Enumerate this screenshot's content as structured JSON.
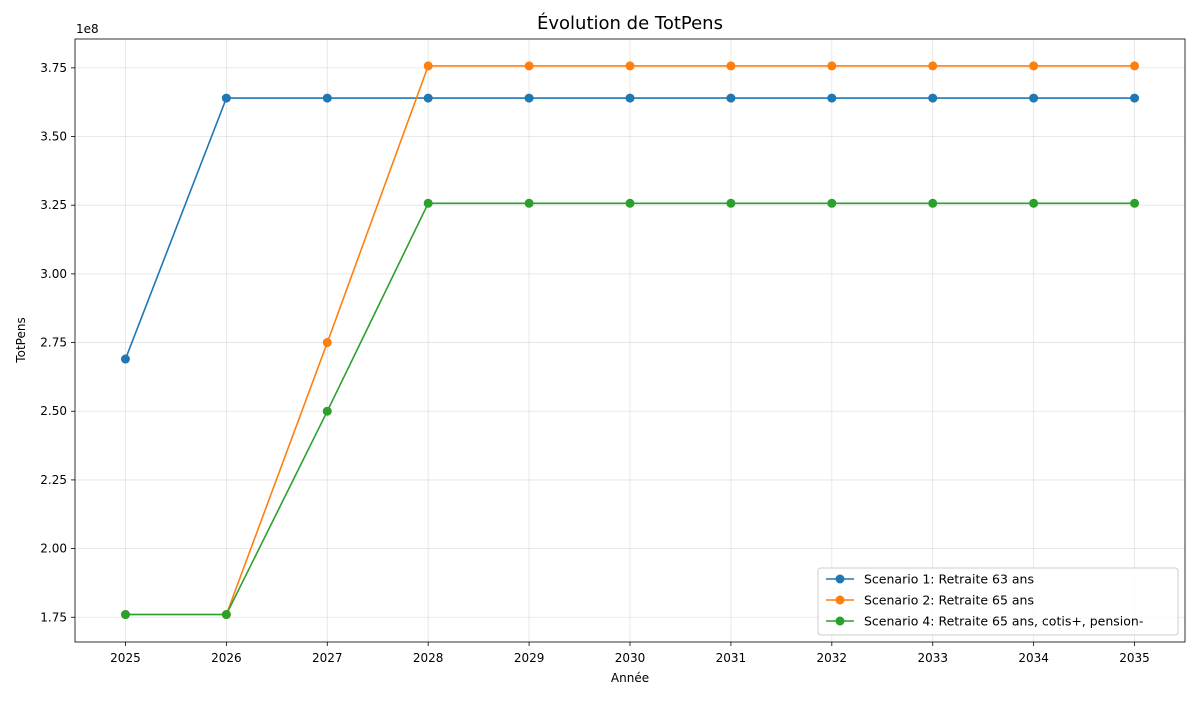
{
  "chart_data": {
    "type": "line",
    "title": "Évolution de TotPens",
    "xlabel": "Année",
    "ylabel": "TotPens",
    "y_offset_label": "1e8",
    "x": [
      2025,
      2026,
      2027,
      2028,
      2029,
      2030,
      2031,
      2032,
      2033,
      2034,
      2035
    ],
    "x_tick_labels": [
      "2025",
      "2026",
      "2027",
      "2028",
      "2029",
      "2030",
      "2031",
      "2032",
      "2033",
      "2034",
      "2035"
    ],
    "y_ticks": [
      1.75,
      2.0,
      2.25,
      2.5,
      2.75,
      3.0,
      3.25,
      3.5,
      3.75
    ],
    "y_tick_labels": [
      "1.75",
      "2.00",
      "2.25",
      "2.50",
      "2.75",
      "3.00",
      "3.25",
      "3.50",
      "3.75"
    ],
    "ylim": [
      1.66,
      3.855
    ],
    "xlim": [
      2024.5,
      2035.5
    ],
    "grid": true,
    "legend_position": "bottom-right",
    "series": [
      {
        "name": "Scenario 1: Retraite 63 ans",
        "color": "#1f77b4",
        "values": [
          2.69,
          3.64,
          3.64,
          3.64,
          3.64,
          3.64,
          3.64,
          3.64,
          3.64,
          3.64,
          3.64
        ]
      },
      {
        "name": "Scenario 2: Retraite 65 ans",
        "color": "#ff7f0e",
        "values": [
          1.76,
          1.76,
          2.75,
          3.757,
          3.757,
          3.757,
          3.757,
          3.757,
          3.757,
          3.757,
          3.757
        ]
      },
      {
        "name": "Scenario 4: Retraite 65 ans, cotis+, pension-",
        "color": "#2ca02c",
        "values": [
          1.76,
          1.76,
          2.5,
          3.257,
          3.257,
          3.257,
          3.257,
          3.257,
          3.257,
          3.257,
          3.257
        ]
      }
    ]
  }
}
